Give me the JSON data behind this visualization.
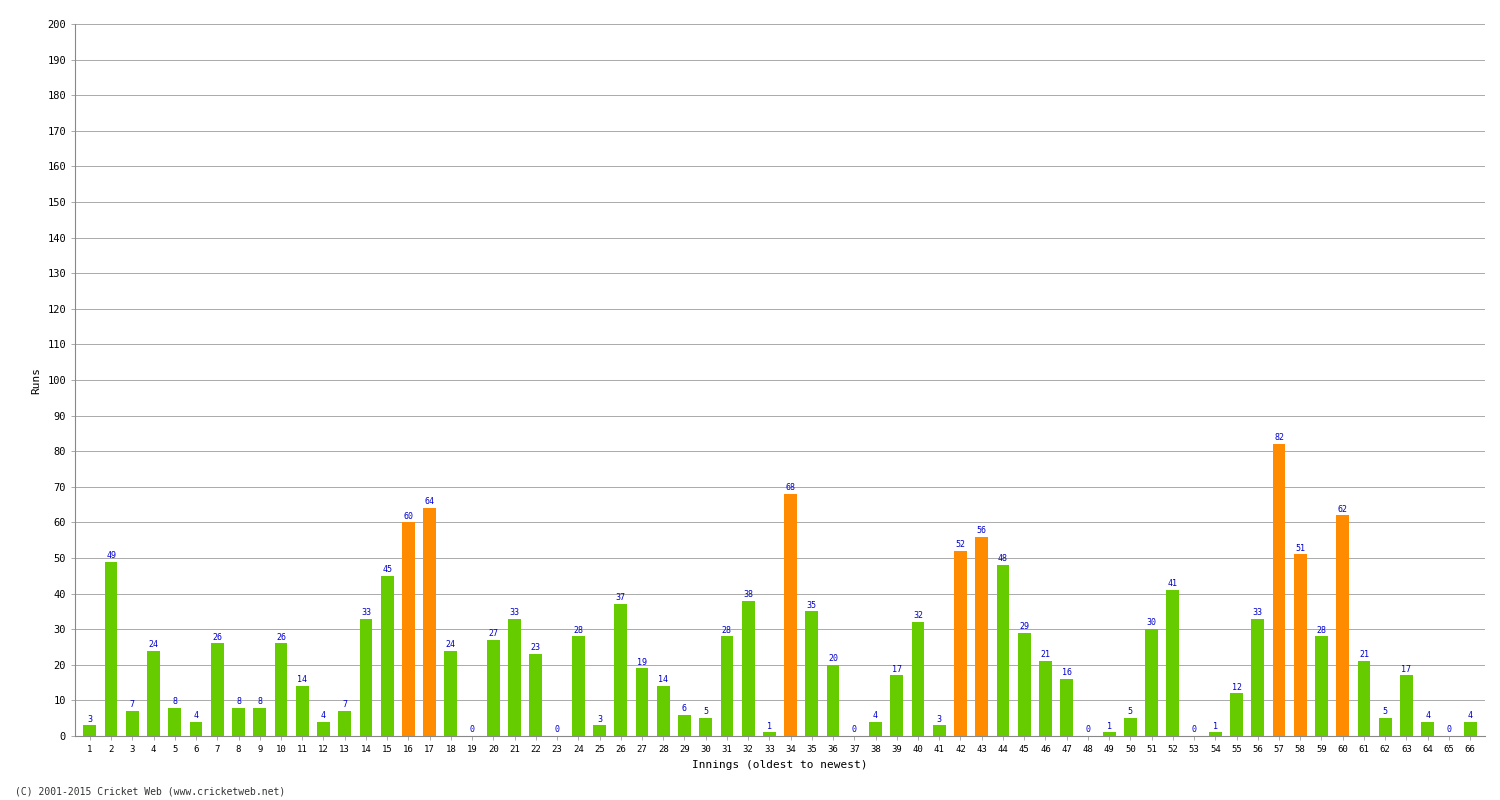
{
  "xlabel": "Innings (oldest to newest)",
  "ylabel": "Runs",
  "ylim": [
    0,
    200
  ],
  "yticks": [
    0,
    10,
    20,
    30,
    40,
    50,
    60,
    70,
    80,
    90,
    100,
    110,
    120,
    130,
    140,
    150,
    160,
    170,
    180,
    190,
    200
  ],
  "innings": [
    1,
    2,
    3,
    4,
    5,
    6,
    7,
    8,
    9,
    10,
    11,
    12,
    13,
    14,
    15,
    16,
    17,
    18,
    19,
    20,
    21,
    22,
    23,
    24,
    25,
    26,
    27,
    28,
    29,
    30,
    31,
    32,
    33,
    34,
    35,
    36,
    37,
    38,
    39,
    40,
    41,
    42,
    43,
    44,
    45,
    46,
    47,
    48,
    49,
    50,
    51,
    52,
    53,
    54,
    55,
    56,
    57,
    58,
    59,
    60,
    61,
    62,
    63,
    64,
    65,
    66
  ],
  "values": [
    3,
    49,
    7,
    24,
    8,
    4,
    26,
    8,
    8,
    26,
    14,
    4,
    7,
    33,
    45,
    60,
    64,
    24,
    0,
    27,
    33,
    23,
    0,
    28,
    3,
    37,
    19,
    14,
    6,
    5,
    28,
    38,
    1,
    68,
    35,
    20,
    0,
    4,
    17,
    32,
    3,
    52,
    56,
    48,
    29,
    21,
    16,
    0,
    1,
    5,
    30,
    41,
    0,
    1,
    12,
    33,
    82,
    51,
    28,
    62,
    21,
    5,
    17,
    4,
    0,
    4
  ],
  "is_fifty_plus": [
    false,
    false,
    false,
    false,
    false,
    false,
    false,
    false,
    false,
    false,
    false,
    false,
    false,
    false,
    false,
    true,
    true,
    false,
    false,
    false,
    false,
    false,
    false,
    false,
    false,
    false,
    false,
    false,
    false,
    false,
    false,
    false,
    false,
    true,
    false,
    false,
    false,
    false,
    false,
    false,
    false,
    true,
    true,
    false,
    false,
    false,
    false,
    false,
    false,
    false,
    false,
    false,
    false,
    false,
    false,
    false,
    true,
    true,
    false,
    true,
    false,
    false,
    false,
    false,
    false,
    false
  ],
  "green_color": "#66cc00",
  "orange_color": "#ff8c00",
  "bg_color": "#ffffff",
  "grid_color": "#aaaaaa",
  "label_color": "#0000cc",
  "title_color": "#000000",
  "axis_label_color": "#000000",
  "tick_label_color": "#000000",
  "footer_text": "(C) 2001-2015 Cricket Web (www.cricketweb.net)"
}
